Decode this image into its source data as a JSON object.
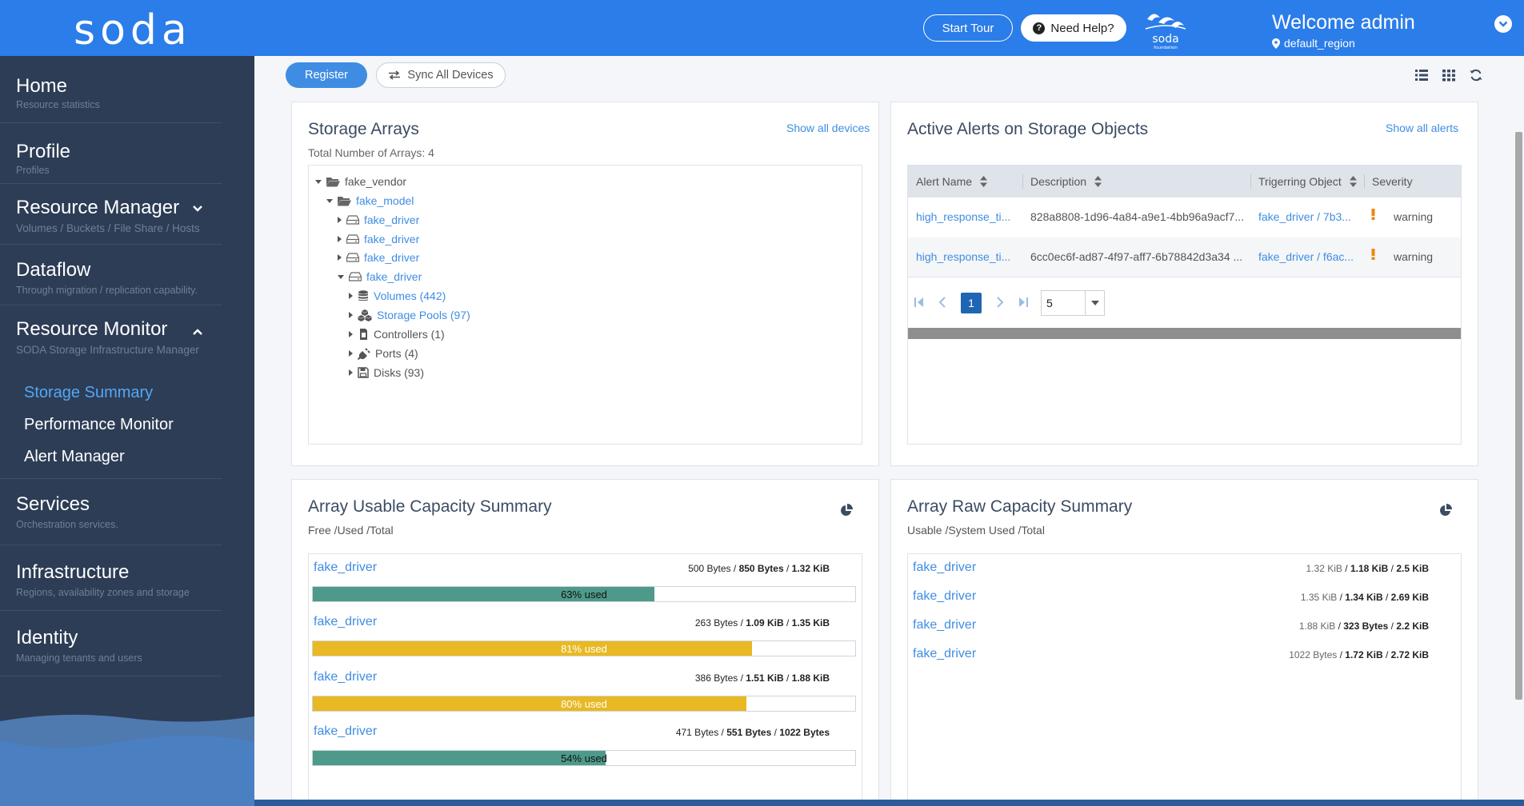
{
  "header": {
    "logo": "soda",
    "start_tour": "Start Tour",
    "need_help": "Need Help?",
    "brand_small": "soda",
    "brand_tag": "foundation",
    "welcome": "Welcome admin",
    "region": "default_region"
  },
  "sidebar": {
    "items": [
      {
        "title": "Home",
        "sub": "Resource statistics"
      },
      {
        "title": "Profile",
        "sub": "Profiles"
      },
      {
        "title": "Resource Manager",
        "sub": "Volumes / Buckets / File Share / Hosts"
      },
      {
        "title": "Dataflow",
        "sub": "Through migration / replication capability."
      },
      {
        "title": "Resource Monitor",
        "sub": "SODA Storage Infrastructure Manager"
      },
      {
        "title": "Services",
        "sub": "Orchestration services."
      },
      {
        "title": "Infrastructure",
        "sub": "Regions, availability zones and storage"
      },
      {
        "title": "Identity",
        "sub": "Managing tenants and users"
      }
    ],
    "sub_items": [
      "Storage Summary",
      "Performance Monitor",
      "Alert Manager"
    ]
  },
  "toolbar": {
    "register": "Register",
    "sync_all": "Sync All Devices"
  },
  "storage_arrays": {
    "title": "Storage Arrays",
    "subtitle": "Total Number of Arrays: 4",
    "show_all": "Show all devices",
    "tree": {
      "vendor": "fake_vendor",
      "model": "fake_model",
      "drivers": [
        "fake_driver",
        "fake_driver",
        "fake_driver",
        "fake_driver"
      ],
      "children": [
        "Volumes (442)",
        "Storage Pools (97)",
        "Controllers (1)",
        "Ports (4)",
        "Disks (93)"
      ]
    }
  },
  "alerts": {
    "title": "Active Alerts on Storage Objects",
    "show_all": "Show all alerts",
    "columns": [
      "Alert Name",
      "Description",
      "Trigerring Object",
      "Severity"
    ],
    "rows": [
      {
        "name": "high_response_ti...",
        "desc": "828a8808-1d96-4a84-a9e1-4bb96a9acf7...",
        "object": "fake_driver / 7b3...",
        "severity": "warning"
      },
      {
        "name": "high_response_ti...",
        "desc": "6cc0ec6f-ad87-4f97-aff7-6b78842d3a34 ...",
        "object": "fake_driver / f6ac...",
        "severity": "warning"
      }
    ],
    "page": "1",
    "page_size": "5"
  },
  "usable_capacity": {
    "title": "Array Usable Capacity Summary",
    "subtitle": "Free /Used /Total",
    "rows": [
      {
        "name": "fake_driver",
        "free": "500 Bytes",
        "used": "850 Bytes",
        "total": "1.32 KiB",
        "pct": 63,
        "label": "63% used",
        "color": "#4e9a8a"
      },
      {
        "name": "fake_driver",
        "free": "263 Bytes",
        "used": "1.09 KiB",
        "total": "1.35 KiB",
        "pct": 81,
        "label": "81% used",
        "color": "#e8b923"
      },
      {
        "name": "fake_driver",
        "free": "386 Bytes",
        "used": "1.51 KiB",
        "total": "1.88 KiB",
        "pct": 80,
        "label": "80% used",
        "color": "#e8b923"
      },
      {
        "name": "fake_driver",
        "free": "471 Bytes",
        "used": "551 Bytes",
        "total": "1022 Bytes",
        "pct": 54,
        "label": "54% used",
        "color": "#4e9a8a"
      }
    ]
  },
  "raw_capacity": {
    "title": "Array Raw Capacity Summary",
    "subtitle": "Usable /System Used /Total",
    "rows": [
      {
        "name": "fake_driver",
        "usable": "1.32 KiB",
        "system": "1.18 KiB",
        "total": "2.5 KiB"
      },
      {
        "name": "fake_driver",
        "usable": "1.35 KiB",
        "system": "1.34 KiB",
        "total": "2.69 KiB"
      },
      {
        "name": "fake_driver",
        "usable": "1.88 KiB",
        "system": "323 Bytes",
        "total": "2.2 KiB"
      },
      {
        "name": "fake_driver",
        "usable": "1022 Bytes",
        "system": "1.72 KiB",
        "total": "2.72 KiB"
      }
    ]
  },
  "colors": {
    "header": "#2b7de9",
    "sidebar": "#2d3d56",
    "accent": "#3f8de3",
    "warning": "#e8890c"
  }
}
